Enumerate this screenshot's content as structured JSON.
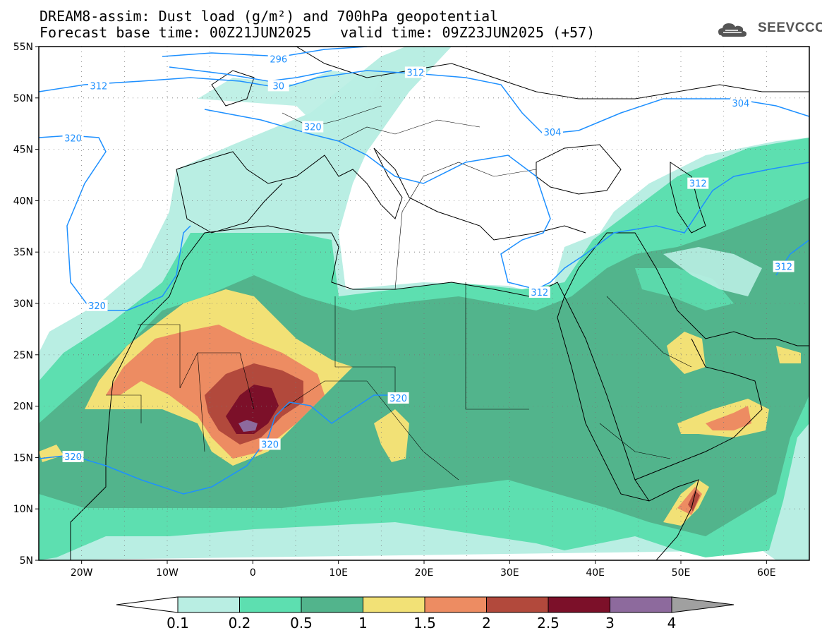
{
  "header": {
    "title_line1": "DREAM8-assim: Dust load (g/m²) and 700hPa geopotential",
    "title_line2": "Forecast base time: 00Z21JUN2025",
    "valid_time": "valid time: 09Z23JUN2025 (+57)",
    "logo_text": "SEEVCCC"
  },
  "map": {
    "lat_labels": [
      "55N",
      "50N",
      "45N",
      "40N",
      "35N",
      "30N",
      "25N",
      "20N",
      "15N",
      "10N",
      "5N"
    ],
    "lat_values": [
      55,
      50,
      45,
      40,
      35,
      30,
      25,
      20,
      15,
      10,
      5
    ],
    "lon_labels": [
      "20W",
      "10W",
      "0",
      "10E",
      "20E",
      "30E",
      "40E",
      "50E",
      "60E"
    ],
    "lon_values": [
      -20,
      -10,
      0,
      10,
      20,
      30,
      40,
      50,
      60
    ],
    "extent": {
      "lon_min": -25,
      "lon_max": 65,
      "lat_min": 5,
      "lat_max": 55
    },
    "contour_labels": [
      {
        "text": "296",
        "lon": 3,
        "lat": 53.8
      },
      {
        "text": "312",
        "lon": -18,
        "lat": 51.2
      },
      {
        "text": "30",
        "lon": 3,
        "lat": 51.2
      },
      {
        "text": "312",
        "lon": 19,
        "lat": 52.5
      },
      {
        "text": "304",
        "lon": 57,
        "lat": 49.5
      },
      {
        "text": "304",
        "lon": 35,
        "lat": 46.7
      },
      {
        "text": "320",
        "lon": 7,
        "lat": 47.2
      },
      {
        "text": "320",
        "lon": -21,
        "lat": 46.1
      },
      {
        "text": "312",
        "lon": 52,
        "lat": 41.7
      },
      {
        "text": "312",
        "lon": 62,
        "lat": 33.6
      },
      {
        "text": "312",
        "lon": 33.5,
        "lat": 31.1
      },
      {
        "text": "320",
        "lon": -18.2,
        "lat": 29.8
      },
      {
        "text": "320",
        "lon": 17,
        "lat": 20.8
      },
      {
        "text": "320",
        "lon": 2,
        "lat": 16.3
      },
      {
        "text": "320",
        "lon": -21,
        "lat": 15.1
      }
    ]
  },
  "legend": {
    "labels": [
      "0.1",
      "0.2",
      "0.5",
      "1",
      "1.5",
      "2",
      "2.5",
      "3",
      "4"
    ],
    "colors": [
      "#ffffff",
      "#b9eee3",
      "#5ddfb0",
      "#52b48c",
      "#f2e176",
      "#ed8c62",
      "#b2493c",
      "#7c1029",
      "#8d6a9d",
      "#a0a0a0"
    ]
  }
}
